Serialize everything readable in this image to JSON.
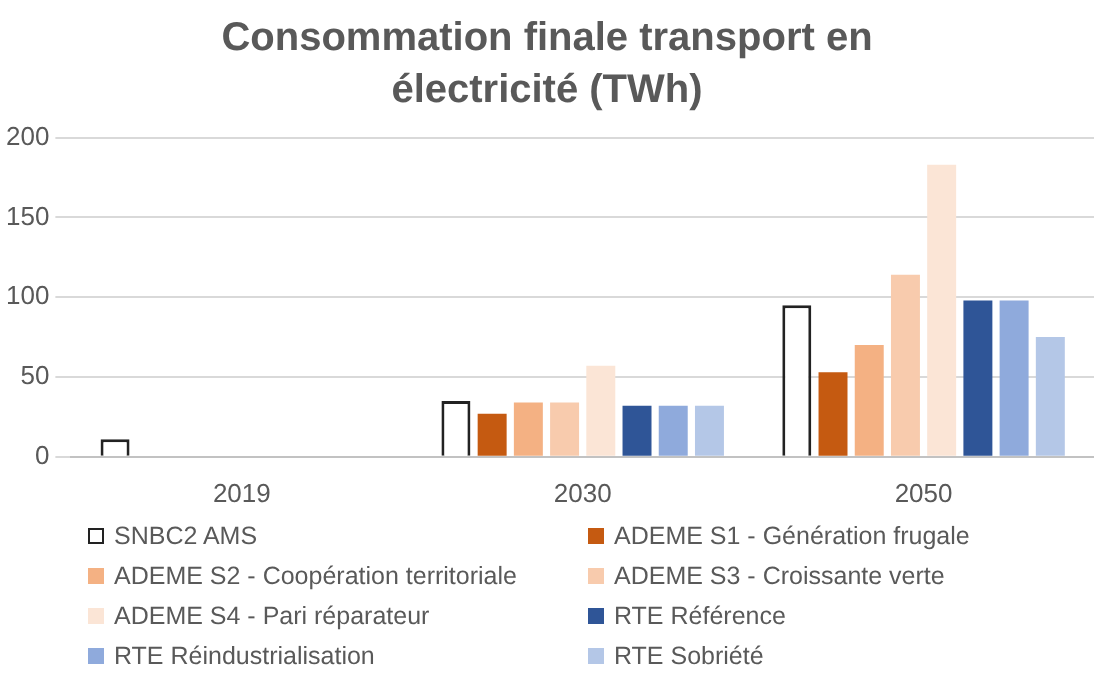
{
  "chart_data": {
    "type": "bar",
    "title": "Consommation finale transport en électricité (TWh)",
    "categories": [
      "2019",
      "2030",
      "2050"
    ],
    "series": [
      {
        "name": "SNBC2 AMS",
        "color": "#ffffff",
        "values": [
          11,
          35,
          95
        ]
      },
      {
        "name": "ADEME S1 - Génération frugale",
        "color": "#c55a11",
        "values": [
          null,
          27,
          53
        ]
      },
      {
        "name": "ADEME S2 - Coopération territoriale",
        "color": "#f4b183",
        "values": [
          null,
          34,
          70
        ]
      },
      {
        "name": "ADEME S3 - Croissante verte",
        "color": "#f8cbad",
        "values": [
          null,
          34,
          114
        ]
      },
      {
        "name": "ADEME S4 - Pari réparateur",
        "color": "#fbe5d6",
        "values": [
          null,
          57,
          183
        ]
      },
      {
        "name": "RTE Référence",
        "color": "#2f5597",
        "values": [
          null,
          32,
          98
        ]
      },
      {
        "name": "RTE Réindustrialisation",
        "color": "#8faadc",
        "values": [
          null,
          32,
          98
        ]
      },
      {
        "name": "RTE Sobriété",
        "color": "#b4c7e7",
        "values": [
          null,
          32,
          75
        ]
      }
    ],
    "ylim": [
      0,
      200
    ],
    "yticks": [
      0,
      50,
      100,
      150,
      200
    ],
    "grid": "y",
    "legend": "bottom"
  }
}
